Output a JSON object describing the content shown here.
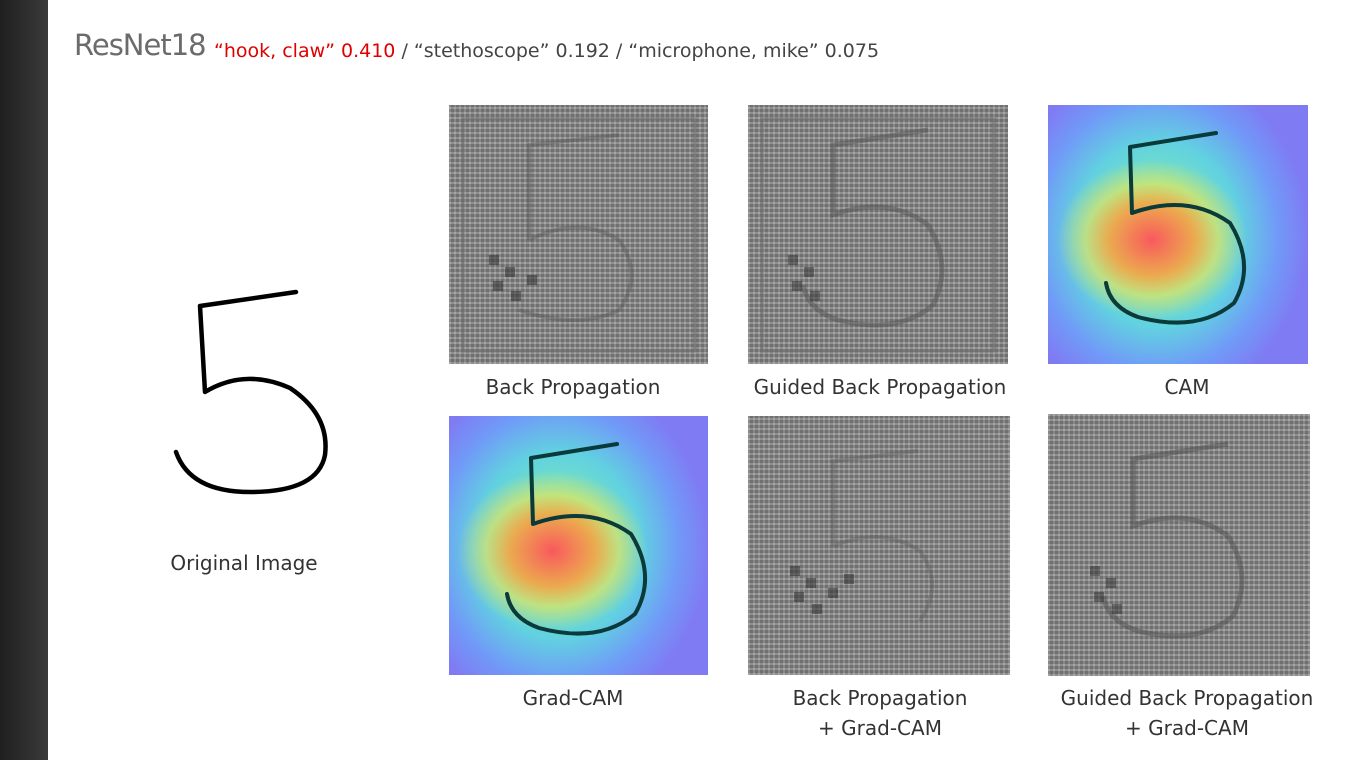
{
  "header": {
    "model": "ResNet18",
    "top_prediction": "“hook, claw” 0.410",
    "other_predictions": " / “stethoscope” 0.192 / “microphone, mike” 0.075"
  },
  "original": {
    "caption": "Original Image"
  },
  "panels": [
    {
      "caption": "Back Propagation"
    },
    {
      "caption": "Guided Back Propagation"
    },
    {
      "caption": "CAM"
    },
    {
      "caption": "Grad-CAM"
    },
    {
      "caption": "Back Propagation",
      "caption2": "+ Grad-CAM"
    },
    {
      "caption": "Guided Back Propagation",
      "caption2": "+ Grad-CAM"
    }
  ],
  "colors": {
    "accent": "#e00000",
    "sidebar": "#2b2b2b",
    "heatmap_base": "#7f7cf3"
  }
}
